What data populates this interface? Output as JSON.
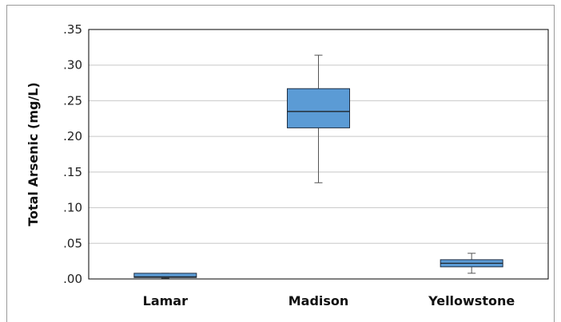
{
  "chart_data": {
    "type": "box",
    "title": "",
    "xlabel": "",
    "ylabel": "Total Arsenic (mg/L)",
    "ylim": [
      0,
      0.35
    ],
    "yticks": [
      ".00",
      ".05",
      ".10",
      ".15",
      ".20",
      ".25",
      ".30",
      ".35"
    ],
    "ytick_values": [
      0,
      0.05,
      0.1,
      0.15,
      0.2,
      0.25,
      0.3,
      0.35
    ],
    "grid": true,
    "box_color": "#5b9bd5",
    "box_edge_color": "#1f2f44",
    "categories": [
      "Lamar",
      "Madison",
      "Yellowstone"
    ],
    "boxes": [
      {
        "name": "Lamar",
        "min": 0.001,
        "q1": 0.002,
        "median": 0.003,
        "q3": 0.008,
        "max": 0.008
      },
      {
        "name": "Madison",
        "min": 0.135,
        "q1": 0.212,
        "median": 0.235,
        "q3": 0.267,
        "max": 0.314
      },
      {
        "name": "Yellowstone",
        "min": 0.008,
        "q1": 0.017,
        "median": 0.022,
        "q3": 0.027,
        "max": 0.036
      }
    ]
  }
}
